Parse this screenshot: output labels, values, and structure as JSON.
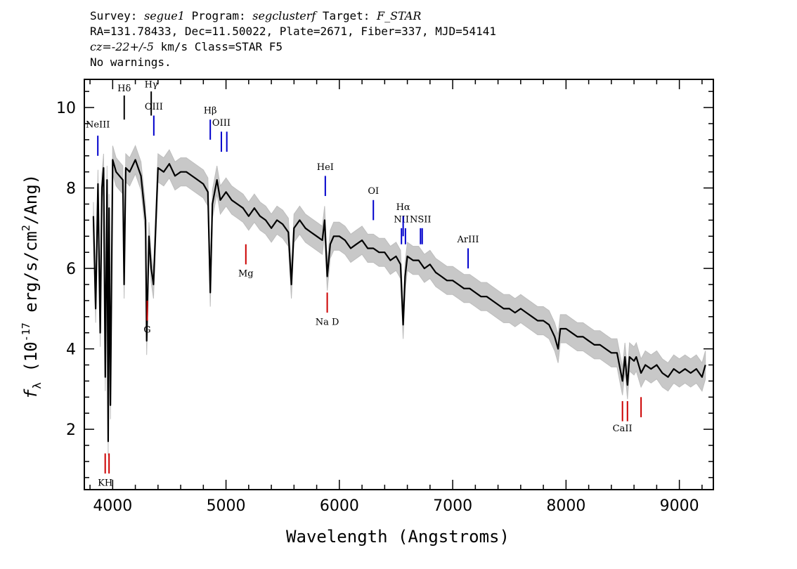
{
  "header": {
    "survey_label": "Survey:",
    "survey": "segue1",
    "program_label": "Program:",
    "program": "segclusterf",
    "target_label": "Target:",
    "target": "F_STAR",
    "line2": "RA=131.78433, Dec=11.50022, Plate=2671, Fiber=337, MJD=54141",
    "cz": "cz=",
    "cz_val": "-22+/-5",
    "cz_unit": " km/s Class=STAR F5",
    "warnings": "No warnings."
  },
  "chart_data": {
    "type": "line",
    "xlabel": "Wavelength (Angstroms)",
    "ylabel_text": "f",
    "ylabel_sub": "λ",
    "ylabel_rest1": " (10",
    "ylabel_sup1": "-17",
    "ylabel_rest2": " erg/s/cm",
    "ylabel_sup2": "2",
    "ylabel_rest3": "/Ang)",
    "xlim": [
      3750,
      9300
    ],
    "ylim": [
      0.5,
      10.7
    ],
    "xticks": [
      4000,
      5000,
      6000,
      7000,
      8000,
      9000
    ],
    "xtick_labels": [
      "4000",
      "5000",
      "6000",
      "7000",
      "8000",
      "9000"
    ],
    "yticks": [
      2,
      4,
      6,
      8,
      10
    ],
    "ytick_labels": [
      "2",
      "4",
      "6",
      "8",
      "10"
    ],
    "series": [
      {
        "color": "#000000",
        "x": [
          3830,
          3850,
          3870,
          3890,
          3905,
          3920,
          3935,
          3950,
          3960,
          3968,
          3980,
          4000,
          4030,
          4060,
          4090,
          4101,
          4115,
          4150,
          4200,
          4250,
          4290,
          4300,
          4320,
          4340,
          4360,
          4400,
          4450,
          4500,
          4550,
          4600,
          4650,
          4700,
          4750,
          4800,
          4840,
          4861,
          4880,
          4920,
          4950,
          5000,
          5050,
          5100,
          5150,
          5200,
          5250,
          5300,
          5350,
          5400,
          5450,
          5500,
          5550,
          5577,
          5600,
          5650,
          5700,
          5750,
          5800,
          5850,
          5870,
          5893,
          5920,
          5950,
          6000,
          6050,
          6100,
          6150,
          6200,
          6250,
          6300,
          6350,
          6400,
          6450,
          6500,
          6540,
          6563,
          6580,
          6600,
          6650,
          6700,
          6750,
          6800,
          6850,
          6900,
          6950,
          7000,
          7050,
          7100,
          7150,
          7200,
          7250,
          7300,
          7350,
          7400,
          7450,
          7500,
          7550,
          7600,
          7650,
          7700,
          7750,
          7800,
          7850,
          7900,
          7930,
          7950,
          8000,
          8050,
          8100,
          8150,
          8200,
          8250,
          8300,
          8350,
          8400,
          8450,
          8498,
          8520,
          8542,
          8560,
          8600,
          8620,
          8662,
          8700,
          8750,
          8800,
          8850,
          8900,
          8950,
          9000,
          9050,
          9100,
          9150,
          9200,
          9230
        ],
        "y": [
          7.3,
          5.0,
          8.1,
          4.4,
          8.0,
          8.5,
          3.3,
          8.2,
          1.7,
          7.5,
          2.6,
          8.7,
          8.4,
          8.3,
          8.2,
          5.6,
          8.5,
          8.4,
          8.7,
          8.3,
          7.2,
          4.2,
          6.8,
          6.0,
          5.6,
          8.5,
          8.4,
          8.6,
          8.3,
          8.4,
          8.4,
          8.3,
          8.2,
          8.1,
          7.9,
          5.4,
          7.6,
          8.2,
          7.7,
          7.9,
          7.7,
          7.6,
          7.5,
          7.3,
          7.5,
          7.3,
          7.2,
          7.0,
          7.2,
          7.1,
          6.9,
          5.6,
          7.0,
          7.2,
          7.0,
          6.9,
          6.8,
          6.7,
          7.2,
          5.8,
          6.6,
          6.8,
          6.8,
          6.7,
          6.5,
          6.6,
          6.7,
          6.5,
          6.5,
          6.4,
          6.4,
          6.2,
          6.3,
          6.1,
          4.6,
          5.8,
          6.3,
          6.2,
          6.2,
          6.0,
          6.1,
          5.9,
          5.8,
          5.7,
          5.7,
          5.6,
          5.5,
          5.5,
          5.4,
          5.3,
          5.3,
          5.2,
          5.1,
          5.0,
          5.0,
          4.9,
          5.0,
          4.9,
          4.8,
          4.7,
          4.7,
          4.6,
          4.3,
          4.0,
          4.5,
          4.5,
          4.4,
          4.3,
          4.3,
          4.2,
          4.1,
          4.1,
          4.0,
          3.9,
          3.9,
          3.2,
          3.8,
          3.1,
          3.8,
          3.7,
          3.8,
          3.4,
          3.6,
          3.5,
          3.6,
          3.4,
          3.3,
          3.5,
          3.4,
          3.5,
          3.4,
          3.5,
          3.3,
          3.6
        ]
      }
    ],
    "lines": [
      {
        "label": "NeIII",
        "x": 3869,
        "y0": 8.8,
        "y1": 9.3,
        "ly": 9.5,
        "color": "#0000cc"
      },
      {
        "label": "Hδ",
        "x": 4102,
        "y0": 9.7,
        "y1": 10.3,
        "ly": 10.4,
        "color": "#000000"
      },
      {
        "label": "Hγ",
        "x": 4340,
        "y0": 9.8,
        "y1": 10.4,
        "ly": 10.5,
        "color": "#000000"
      },
      {
        "label": "OIII",
        "x": 4363,
        "y0": 9.3,
        "y1": 9.8,
        "ly": 9.95,
        "color": "#0000cc"
      },
      {
        "label": "Hβ",
        "x": 4861,
        "y0": 9.2,
        "y1": 9.7,
        "ly": 9.85,
        "color": "#0000cc"
      },
      {
        "label": "OIII",
        "x": 4959,
        "y0": 8.9,
        "y1": 9.4,
        "ly": 9.55,
        "color": "#0000cc"
      },
      {
        "label": "",
        "x": 5007,
        "y0": 8.9,
        "y1": 9.4,
        "ly": 9.55,
        "color": "#0000cc"
      },
      {
        "label": "HeI",
        "x": 5876,
        "y0": 7.8,
        "y1": 8.3,
        "ly": 8.45,
        "color": "#0000cc"
      },
      {
        "label": "OI",
        "x": 6300,
        "y0": 7.2,
        "y1": 7.7,
        "ly": 7.85,
        "color": "#0000cc"
      },
      {
        "label": "NII",
        "x": 6548,
        "y0": 6.6,
        "y1": 7.0,
        "ly": 7.15,
        "color": "#0000cc"
      },
      {
        "label": "Hα",
        "x": 6563,
        "y0": 6.8,
        "y1": 7.3,
        "ly": 7.45,
        "color": "#0000cc"
      },
      {
        "label": "",
        "x": 6583,
        "y0": 6.6,
        "y1": 7.0,
        "ly": 7.15,
        "color": "#0000cc"
      },
      {
        "label": "NSII",
        "x": 6716,
        "y0": 6.6,
        "y1": 7.0,
        "ly": 7.15,
        "color": "#0000cc"
      },
      {
        "label": "",
        "x": 6731,
        "y0": 6.6,
        "y1": 7.0,
        "ly": 7.15,
        "color": "#0000cc"
      },
      {
        "label": "ArIII",
        "x": 7136,
        "y0": 6.0,
        "y1": 6.5,
        "ly": 6.65,
        "color": "#0000cc"
      },
      {
        "label": "KH",
        "x": 3934,
        "y0": 0.9,
        "y1": 1.4,
        "ly": 0.6,
        "color": "#cc0000"
      },
      {
        "label": "",
        "x": 3968,
        "y0": 0.9,
        "y1": 1.4,
        "ly": 0.6,
        "color": "#cc0000"
      },
      {
        "label": "G",
        "x": 4305,
        "y0": 4.7,
        "y1": 5.2,
        "ly": 4.4,
        "color": "#cc0000"
      },
      {
        "label": "Mg",
        "x": 5175,
        "y0": 6.1,
        "y1": 6.6,
        "ly": 5.8,
        "color": "#cc0000"
      },
      {
        "label": "Na D",
        "x": 5893,
        "y0": 4.9,
        "y1": 5.4,
        "ly": 4.6,
        "color": "#cc0000"
      },
      {
        "label": "CaII",
        "x": 8498,
        "y0": 2.2,
        "y1": 2.7,
        "ly": 1.95,
        "color": "#cc0000"
      },
      {
        "label": "",
        "x": 8542,
        "y0": 2.2,
        "y1": 2.7,
        "ly": 1.95,
        "color": "#cc0000"
      },
      {
        "label": "",
        "x": 8662,
        "y0": 2.3,
        "y1": 2.8,
        "ly": 1.95,
        "color": "#cc0000"
      }
    ]
  }
}
